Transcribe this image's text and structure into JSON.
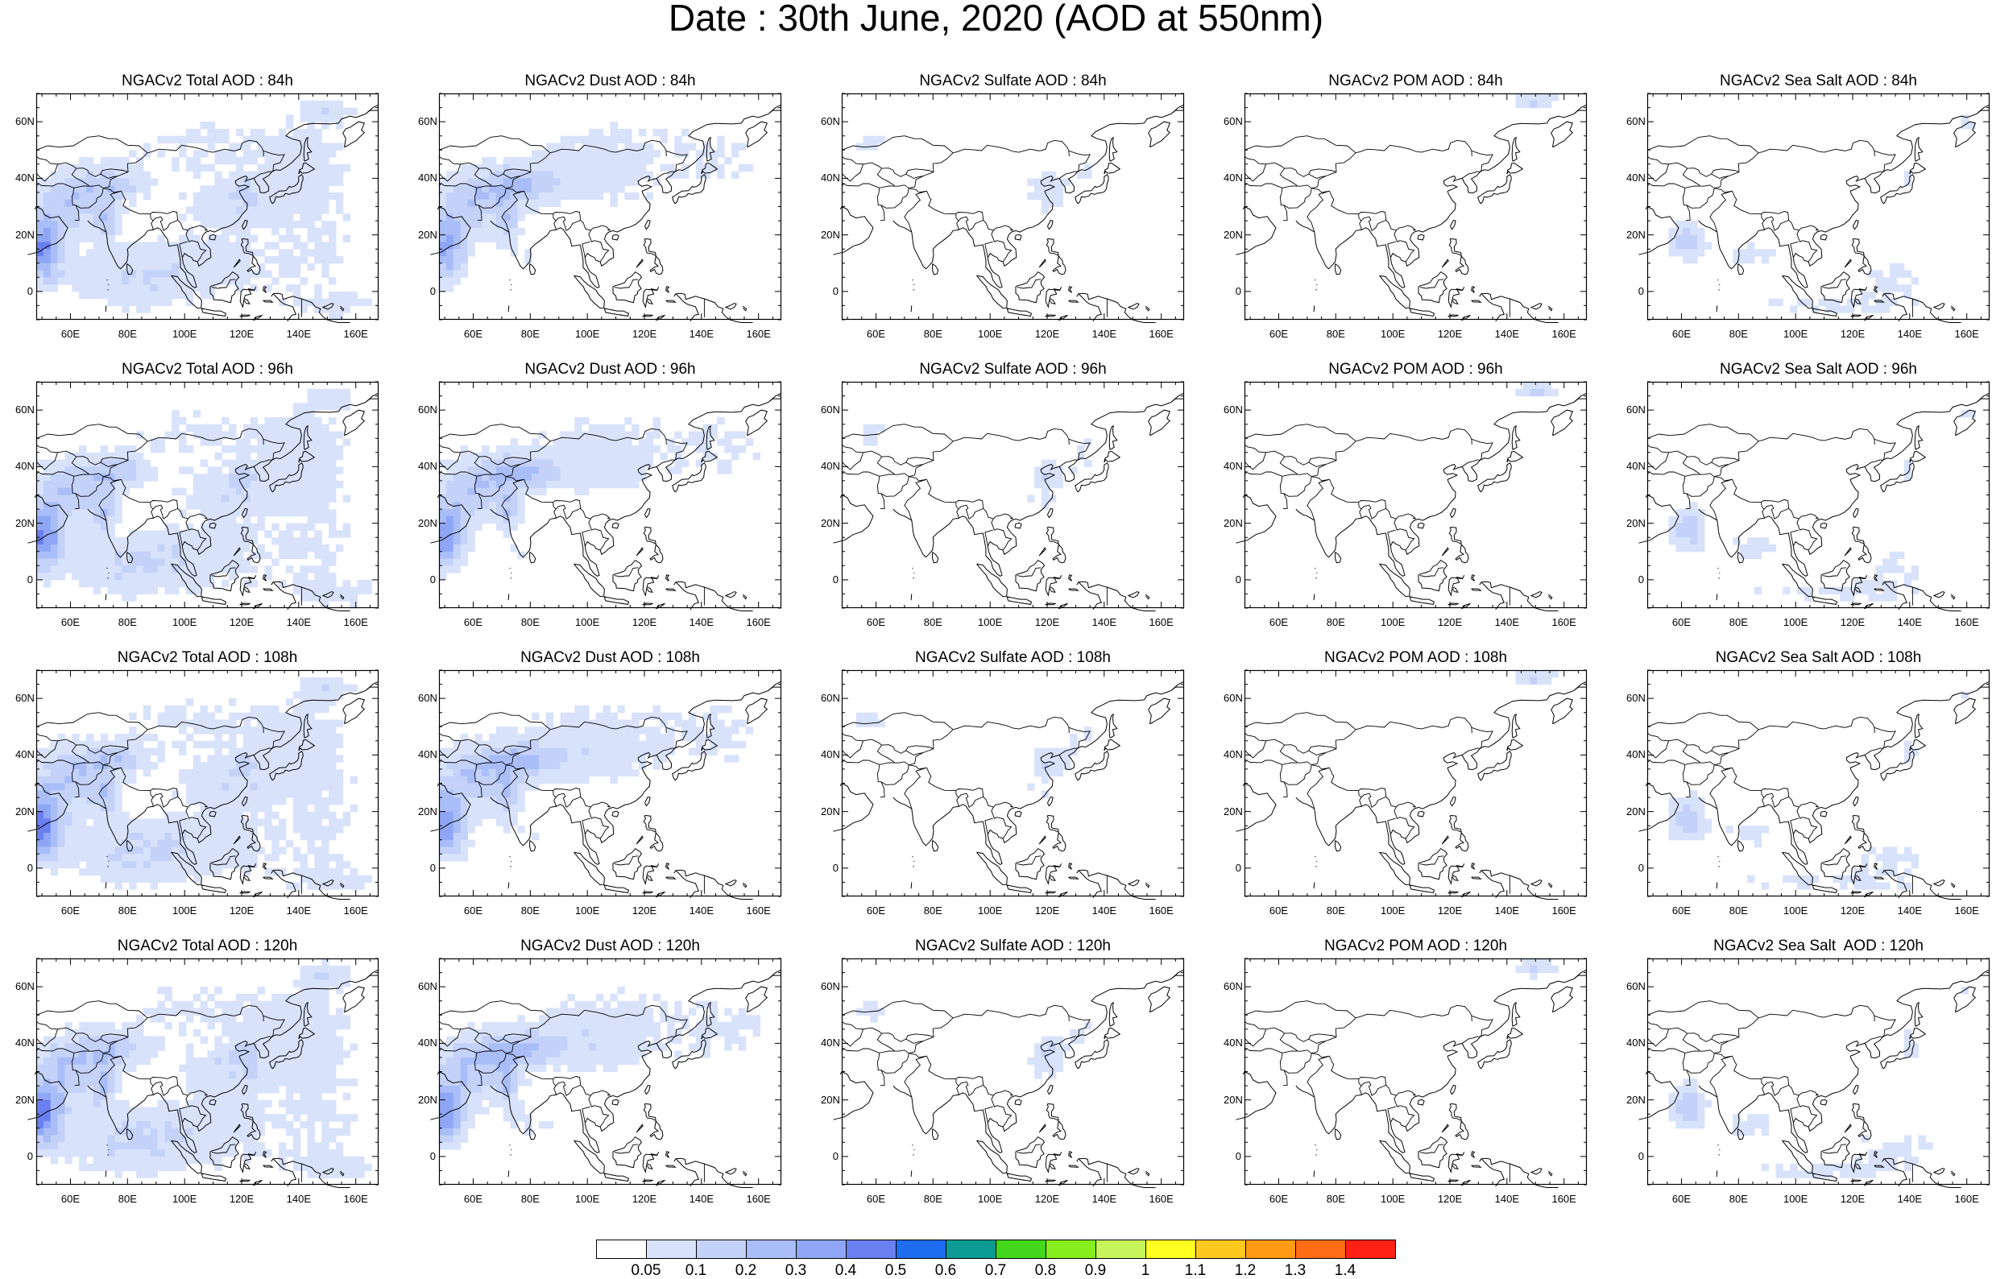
{
  "title": "Date : 30th June, 2020 (AOD at 550nm)",
  "x_ticks": [
    "60E",
    "80E",
    "100E",
    "120E",
    "140E",
    "160E"
  ],
  "y_ticks": [
    "60N",
    "40N",
    "20N",
    "0"
  ],
  "extent": {
    "lon": [
      48,
      168
    ],
    "lat": [
      -10,
      70
    ]
  },
  "panels": [
    {
      "title": "NGACv2 Total AOD : 84h",
      "species": "total",
      "hour": 84
    },
    {
      "title": "NGACv2 Dust AOD : 84h",
      "species": "dust",
      "hour": 84
    },
    {
      "title": "NGACv2 Sulfate AOD : 84h",
      "species": "sulfate",
      "hour": 84
    },
    {
      "title": "NGACv2 POM AOD : 84h",
      "species": "pom",
      "hour": 84
    },
    {
      "title": "NGACv2 Sea Salt AOD : 84h",
      "species": "seasalt",
      "hour": 84
    },
    {
      "title": "NGACv2 Total AOD : 96h",
      "species": "total",
      "hour": 96
    },
    {
      "title": "NGACv2 Dust AOD : 96h",
      "species": "dust",
      "hour": 96
    },
    {
      "title": "NGACv2 Sulfate AOD : 96h",
      "species": "sulfate",
      "hour": 96
    },
    {
      "title": "NGACv2 POM AOD : 96h",
      "species": "pom",
      "hour": 96
    },
    {
      "title": "NGACv2 Sea Salt AOD : 96h",
      "species": "seasalt",
      "hour": 96
    },
    {
      "title": "NGACv2 Total AOD : 108h",
      "species": "total",
      "hour": 108
    },
    {
      "title": "NGACv2 Dust AOD : 108h",
      "species": "dust",
      "hour": 108
    },
    {
      "title": "NGACv2 Sulfate AOD : 108h",
      "species": "sulfate",
      "hour": 108
    },
    {
      "title": "NGACv2 POM AOD : 108h",
      "species": "pom",
      "hour": 108
    },
    {
      "title": "NGACv2 Sea Salt AOD : 108h",
      "species": "seasalt",
      "hour": 108
    },
    {
      "title": "NGACv2 Total AOD : 120h",
      "species": "total",
      "hour": 120
    },
    {
      "title": "NGACv2 Dust AOD : 120h",
      "species": "dust",
      "hour": 120
    },
    {
      "title": "NGACv2 Sulfate AOD : 120h",
      "species": "sulfate",
      "hour": 120
    },
    {
      "title": "NGACv2 POM AOD : 120h",
      "species": "pom",
      "hour": 120
    },
    {
      "title": "NGACv2 Sea Salt  AOD : 120h",
      "species": "seasalt",
      "hour": 120
    }
  ],
  "colorbar": {
    "labels": [
      "0.05",
      "0.1",
      "0.2",
      "0.3",
      "0.4",
      "0.5",
      "0.6",
      "0.7",
      "0.8",
      "0.9",
      "1",
      "1.1",
      "1.2",
      "1.3",
      "1.4"
    ],
    "colors": [
      "#ffffff",
      "#d8e2fb",
      "#c4d2fa",
      "#a9bdf8",
      "#8ea6f5",
      "#6a7ff0",
      "#1e6cf0",
      "#0b9b94",
      "#43d61a",
      "#86ee1c",
      "#c5f55a",
      "#ffff21",
      "#ffc81f",
      "#ff9a14",
      "#ff6c14",
      "#ff2016"
    ]
  }
}
